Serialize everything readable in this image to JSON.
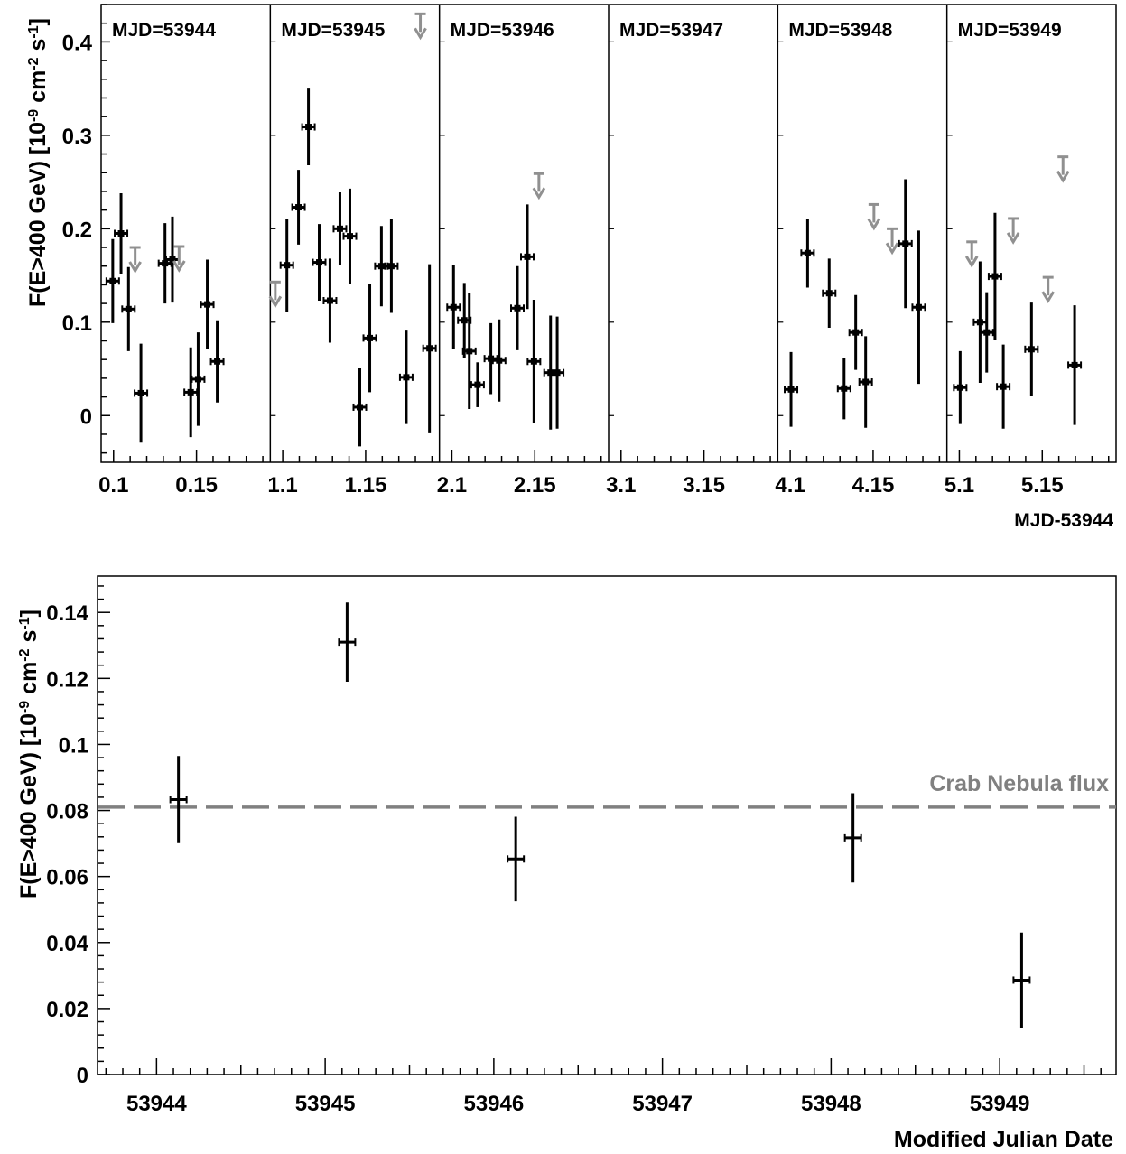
{
  "chart_data": [
    {
      "type": "scatter",
      "xlabel": "MJD-53944",
      "ylabel": "F(E>400 GeV) [10^-9 cm^-2 s^-1]",
      "ylim": [
        -0.05,
        0.44
      ],
      "y_ticks": [
        "0",
        "0.1",
        "0.2",
        "0.3",
        "0.4"
      ],
      "panels": [
        {
          "label": "MJD=53944",
          "xlim": [
            0.0925,
            0.1945
          ],
          "x_ticks": [
            "0.1",
            "0.15"
          ],
          "points": [
            {
              "x": 0.0995,
              "y": 0.144,
              "err": 0.045
            },
            {
              "x": 0.1045,
              "y": 0.195,
              "err": 0.043
            },
            {
              "x": 0.109,
              "y": 0.114,
              "err": 0.045
            },
            {
              "x": 0.1165,
              "y": 0.024,
              "err": 0.053
            },
            {
              "x": 0.131,
              "y": 0.163,
              "err": 0.043
            },
            {
              "x": 0.1355,
              "y": 0.167,
              "err": 0.046
            },
            {
              "x": 0.1465,
              "y": 0.025,
              "err": 0.048
            },
            {
              "x": 0.151,
              "y": 0.039,
              "err": 0.05
            },
            {
              "x": 0.1565,
              "y": 0.119,
              "err": 0.048
            },
            {
              "x": 0.1625,
              "y": 0.058,
              "err": 0.044
            }
          ],
          "upper_limits": [
            {
              "x": 0.113,
              "y": 0.18
            },
            {
              "x": 0.1395,
              "y": 0.181
            }
          ]
        },
        {
          "label": "MJD=53945",
          "xlim": [
            1.0925,
            1.1945
          ],
          "x_ticks": [
            "1.1",
            "1.15"
          ],
          "points": [
            {
              "x": 1.1025,
              "y": 0.161,
              "err": 0.05
            },
            {
              "x": 1.1095,
              "y": 0.223,
              "err": 0.04
            },
            {
              "x": 1.1155,
              "y": 0.309,
              "err": 0.041
            },
            {
              "x": 1.122,
              "y": 0.164,
              "err": 0.041
            },
            {
              "x": 1.1285,
              "y": 0.123,
              "err": 0.045
            },
            {
              "x": 1.1345,
              "y": 0.2,
              "err": 0.039
            },
            {
              "x": 1.1405,
              "y": 0.192,
              "err": 0.051
            },
            {
              "x": 1.1465,
              "y": 0.009,
              "err": 0.042
            },
            {
              "x": 1.1525,
              "y": 0.083,
              "err": 0.058
            },
            {
              "x": 1.1595,
              "y": 0.16,
              "err": 0.043
            },
            {
              "x": 1.1655,
              "y": 0.16,
              "err": 0.05
            },
            {
              "x": 1.1745,
              "y": 0.041,
              "err": 0.05
            },
            {
              "x": 1.1885,
              "y": 0.072,
              "err": 0.09
            }
          ],
          "upper_limits": [
            {
              "x": 1.0955,
              "y": 0.143
            },
            {
              "x": 1.183,
              "y": 0.43
            }
          ]
        },
        {
          "label": "MJD=53946",
          "xlim": [
            2.0925,
            2.1945
          ],
          "x_ticks": [
            "2.1",
            "2.15"
          ],
          "points": [
            {
              "x": 2.101,
              "y": 0.116,
              "err": 0.045
            },
            {
              "x": 2.1075,
              "y": 0.102,
              "err": 0.04
            },
            {
              "x": 2.1105,
              "y": 0.069,
              "err": 0.062
            },
            {
              "x": 2.1155,
              "y": 0.033,
              "err": 0.024
            },
            {
              "x": 2.1235,
              "y": 0.061,
              "err": 0.038
            },
            {
              "x": 2.1285,
              "y": 0.059,
              "err": 0.044
            },
            {
              "x": 2.1395,
              "y": 0.115,
              "err": 0.045
            },
            {
              "x": 2.1455,
              "y": 0.17,
              "err": 0.056
            },
            {
              "x": 2.1495,
              "y": 0.058,
              "err": 0.066
            },
            {
              "x": 2.1595,
              "y": 0.046,
              "err": 0.061
            },
            {
              "x": 2.1635,
              "y": 0.046,
              "err": 0.06
            }
          ],
          "upper_limits": [
            {
              "x": 2.1525,
              "y": 0.259
            }
          ]
        },
        {
          "label": "MJD=53947",
          "xlim": [
            3.0925,
            3.1945
          ],
          "x_ticks": [
            "3.1",
            "3.15"
          ],
          "points": [],
          "upper_limits": []
        },
        {
          "label": "MJD=53948",
          "xlim": [
            4.0925,
            4.1945
          ],
          "x_ticks": [
            "4.1",
            "4.15"
          ],
          "points": [
            {
              "x": 4.1005,
              "y": 0.028,
              "err": 0.04
            },
            {
              "x": 4.1105,
              "y": 0.174,
              "err": 0.037
            },
            {
              "x": 4.1235,
              "y": 0.131,
              "err": 0.037
            },
            {
              "x": 4.1325,
              "y": 0.029,
              "err": 0.033
            },
            {
              "x": 4.1395,
              "y": 0.089,
              "err": 0.04
            },
            {
              "x": 4.1455,
              "y": 0.036,
              "err": 0.049
            },
            {
              "x": 4.1695,
              "y": 0.184,
              "err": 0.069
            },
            {
              "x": 4.1775,
              "y": 0.116,
              "err": 0.082
            }
          ],
          "upper_limits": [
            {
              "x": 4.1505,
              "y": 0.226
            },
            {
              "x": 4.1615,
              "y": 0.2
            }
          ]
        },
        {
          "label": "MJD=53949",
          "xlim": [
            5.0925,
            5.1945
          ],
          "x_ticks": [
            "5.1",
            "5.15"
          ],
          "points": [
            {
              "x": 5.1005,
              "y": 0.03,
              "err": 0.039
            },
            {
              "x": 5.1125,
              "y": 0.1,
              "err": 0.065
            },
            {
              "x": 5.1165,
              "y": 0.089,
              "err": 0.043
            },
            {
              "x": 5.1215,
              "y": 0.149,
              "err": 0.068
            },
            {
              "x": 5.1265,
              "y": 0.031,
              "err": 0.045
            },
            {
              "x": 5.1435,
              "y": 0.071,
              "err": 0.05
            },
            {
              "x": 5.1695,
              "y": 0.054,
              "err": 0.064
            }
          ],
          "upper_limits": [
            {
              "x": 5.1075,
              "y": 0.186
            },
            {
              "x": 5.1325,
              "y": 0.211
            },
            {
              "x": 5.1535,
              "y": 0.148
            },
            {
              "x": 5.1625,
              "y": 0.277
            }
          ]
        }
      ]
    },
    {
      "type": "scatter",
      "xlabel": "Modified Julian Date",
      "ylabel": "F(E>400 GeV) [10^-9 cm^-2 s^-1]",
      "xlim": [
        53943.65,
        53949.69
      ],
      "ylim": [
        0,
        0.151
      ],
      "x_ticks": [
        "53944",
        "53945",
        "53946",
        "53947",
        "53948",
        "53949"
      ],
      "y_ticks": [
        "0",
        "0.02",
        "0.04",
        "0.06",
        "0.08",
        "0.1",
        "0.12",
        "0.14"
      ],
      "points": [
        {
          "x": 53944.13,
          "y": 0.0833,
          "err": 0.0132
        },
        {
          "x": 53945.13,
          "y": 0.131,
          "err": 0.012
        },
        {
          "x": 53946.13,
          "y": 0.0653,
          "err": 0.0128
        },
        {
          "x": 53948.13,
          "y": 0.0717,
          "err": 0.0135
        },
        {
          "x": 53949.13,
          "y": 0.0286,
          "err": 0.0144
        }
      ],
      "reference_line": {
        "y": 0.081,
        "label": "Crab Nebula flux",
        "style": "dashed",
        "color": "#808080"
      }
    }
  ],
  "colors": {
    "points": "#000000",
    "upper_limits": "#909090",
    "reference": "#808080"
  }
}
